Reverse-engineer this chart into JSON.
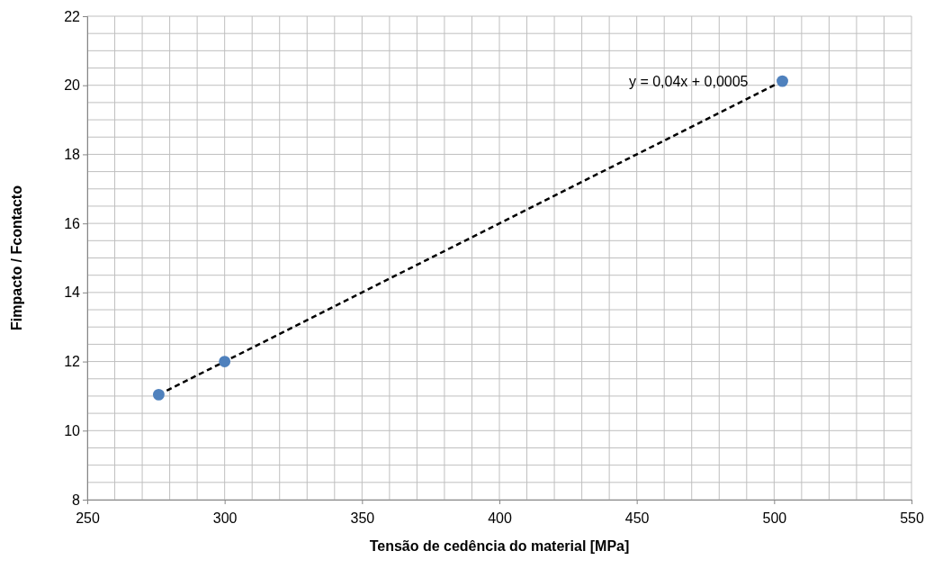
{
  "chart_data": {
    "type": "scatter",
    "xlabel": "Tensão de cedência do material [MPa]",
    "ylabel": "Fimpacto / Fcontacto",
    "series": [
      {
        "color": "#4f81bd",
        "x": [
          276,
          300,
          503
        ],
        "values": [
          11.04,
          12,
          20.12
        ],
        "marker": "circle"
      },
      {
        "type": "line",
        "color": "#000000",
        "x": [
          276,
          503
        ],
        "values": [
          11.04,
          20.12
        ],
        "line_style": "dashed"
      }
    ],
    "annotations": [
      "y = 0,04x + 0,0005"
    ],
    "xlim": [
      250,
      550
    ],
    "xticks": [
      250,
      300,
      350,
      400,
      450,
      500,
      550
    ],
    "ylim": [
      8,
      22
    ],
    "yticks": [
      8,
      10,
      12,
      14,
      16,
      18,
      20,
      22
    ],
    "grid": true
  }
}
